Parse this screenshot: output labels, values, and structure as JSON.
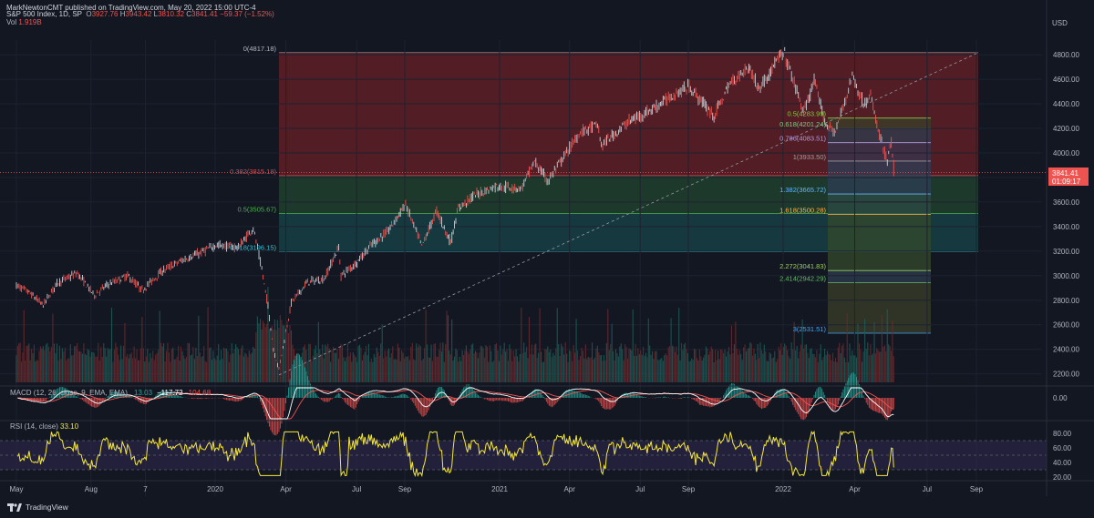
{
  "header": {
    "publisher": "MarkNewtonCMT published on TradingView.com, May 20, 2022 15:00 UTC-4",
    "symbol": "S&P 500 Index, 1D, SP",
    "o_label": "O",
    "o_value": "3927.76",
    "h_label": "H",
    "h_value": "3943.42",
    "l_label": "L",
    "l_value": "3810.32",
    "c_label": "C",
    "c_value": "3841.41",
    "change": "−59.37 (−1.52%)",
    "vol_label": "Vol",
    "vol_value": "1.919B"
  },
  "price_axis": {
    "currency": "USD",
    "last_price": "3841.41",
    "countdown": "01:09:17"
  },
  "macd": {
    "label": "MACD (12, 26, close, 9, EMA, EMA)",
    "hist_value": "13.03",
    "macd_value": "−117.72",
    "signal_value": "−104.68"
  },
  "rsi": {
    "label": "RSI (14, close)",
    "value": "33.10"
  },
  "fib_levels": [
    {
      "label": "0(4817.18)",
      "price": 4817.18
    },
    {
      "label": "0.382(3815.18)",
      "price": 3815.18
    },
    {
      "label": "0.5(3505.67)",
      "price": 3505.67
    },
    {
      "label": "0.618(3196.15)",
      "price": 3196.15
    }
  ],
  "fib_ext_levels": [
    {
      "label": "0.5(4283.99)",
      "price": 4283.99
    },
    {
      "label": "0.618(4201.24)",
      "price": 4201.24
    },
    {
      "label": "0.786(4083.51)",
      "price": 4083.51
    },
    {
      "label": "1(3933.50)",
      "price": 3933.5
    },
    {
      "label": "1.382(3665.72)",
      "price": 3665.72
    },
    {
      "label": "1.618(3500.28)",
      "price": 3500.28
    },
    {
      "label": "2.272(3041.83)",
      "price": 3041.83
    },
    {
      "label": "2.414(2942.29)",
      "price": 2942.29
    },
    {
      "label": "3(2531.51)",
      "price": 2531.51
    }
  ],
  "footer": {
    "brand": "TradingView"
  },
  "colors": {
    "background": "#131722",
    "up": "#26a69a",
    "down": "#ef5350",
    "fib_red_zone": "#5a1e25",
    "fib_green_zone": "#1f3d2c",
    "fib_teal_zone": "#173d43",
    "rsi_line": "#f5e83b",
    "macd_line": "#ffffff",
    "signal_line": "#ef5350"
  },
  "chart_data": {
    "type": "line",
    "title": "S&P 500 Index, 1D, SP",
    "xlabel": "",
    "ylabel": "USD",
    "ylim": [
      2150,
      4900
    ],
    "y_ticks": [
      "4800.00",
      "4600.00",
      "4400.00",
      "4200.00",
      "4000.00",
      "3800.00",
      "3600.00",
      "3400.00",
      "3200.00",
      "3000.00",
      "2800.00",
      "2600.00",
      "2400.00",
      "2200.00"
    ],
    "y_tick_values": [
      4800,
      4600,
      4400,
      4200,
      4000,
      3800,
      3600,
      3400,
      3200,
      3000,
      2800,
      2600,
      2400,
      2200
    ],
    "x_ticks": [
      "May",
      "Aug",
      "7",
      "2020",
      "Apr",
      "Jul",
      "Sep",
      "2021",
      "Apr",
      "Jul",
      "Sep",
      "2022",
      "Apr",
      "Jul",
      "Sep"
    ],
    "x_tick_dates": [
      "2019-05-01",
      "2019-08-01",
      "2019-10-07",
      "2020-01-01",
      "2020-04-01",
      "2020-07-01",
      "2020-09-01",
      "2021-01-01",
      "2021-04-01",
      "2021-07-01",
      "2021-09-01",
      "2022-01-01",
      "2022-04-01",
      "2022-07-01",
      "2022-09-01"
    ],
    "series": [
      {
        "dates": [
          "2019-05-01",
          "2019-05-15",
          "2019-06-03",
          "2019-06-20",
          "2019-07-15",
          "2019-08-05",
          "2019-08-20",
          "2019-09-15",
          "2019-10-03",
          "2019-10-28",
          "2019-11-20",
          "2019-12-15",
          "2020-01-02",
          "2020-01-31",
          "2020-02-19",
          "2020-03-01",
          "2020-03-09",
          "2020-03-16",
          "2020-03-23",
          "2020-04-08",
          "2020-04-29",
          "2020-05-20",
          "2020-06-08",
          "2020-06-11",
          "2020-06-30",
          "2020-07-20",
          "2020-08-10",
          "2020-09-02",
          "2020-09-23",
          "2020-10-12",
          "2020-10-30",
          "2020-11-09",
          "2020-12-01",
          "2020-12-28",
          "2021-01-29",
          "2021-02-15",
          "2021-03-04",
          "2021-03-25",
          "2021-04-15",
          "2021-05-07",
          "2021-05-12",
          "2021-06-15",
          "2021-07-15",
          "2021-08-15",
          "2021-09-02",
          "2021-10-04",
          "2021-10-25",
          "2021-11-18",
          "2021-12-01",
          "2021-12-28",
          "2022-01-03",
          "2022-01-27",
          "2022-02-09",
          "2022-02-24",
          "2022-03-08",
          "2022-03-29",
          "2022-04-12",
          "2022-04-21",
          "2022-05-02",
          "2022-05-12",
          "2022-05-17",
          "2022-05-20"
        ],
        "close": [
          2920,
          2870,
          2760,
          2940,
          3020,
          2840,
          2920,
          3000,
          2880,
          3040,
          3120,
          3190,
          3250,
          3230,
          3390,
          3050,
          2750,
          2400,
          2240,
          2780,
          2950,
          2970,
          3230,
          3000,
          3100,
          3250,
          3360,
          3580,
          3240,
          3530,
          3270,
          3550,
          3660,
          3730,
          3710,
          3930,
          3770,
          3970,
          4170,
          4230,
          4060,
          4250,
          4350,
          4480,
          4540,
          4300,
          4570,
          4700,
          4520,
          4790,
          4800,
          4330,
          4580,
          4230,
          4170,
          4630,
          4400,
          4460,
          4150,
          3930,
          4090,
          3841.41
        ]
      }
    ]
  }
}
